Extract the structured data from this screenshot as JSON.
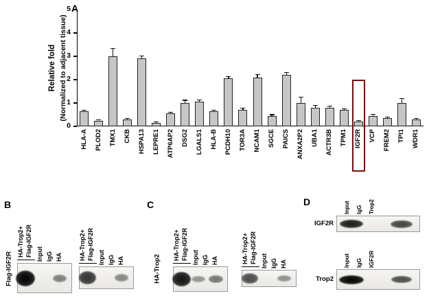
{
  "panels": {
    "a": {
      "label": "A"
    },
    "b": {
      "label": "B",
      "row_label": "Flag-IGF2R"
    },
    "c": {
      "label": "C",
      "row_label": "HA-Trop2"
    },
    "d": {
      "label": "D"
    }
  },
  "chart_data": {
    "type": "bar",
    "ylabel_line1": "Relative fold",
    "ylabel_line2": "(Normalized to adjacent tissue)",
    "ylim": [
      0,
      5
    ],
    "yticks": [
      0,
      1,
      2,
      3,
      4,
      5
    ],
    "categories": [
      "HLA-A",
      "PLOD2",
      "TMX1",
      "CKB",
      "HSPA13",
      "LEPRE1",
      "ATP6AP2",
      "DSG2",
      "LGALS1",
      "HLA-B",
      "PCDH10",
      "TOR3A",
      "NCAM1",
      "SGCE",
      "PAICS",
      "ANXA2P2",
      "UBA1",
      "ACTR3B",
      "TPM1",
      "IGF2R",
      "VCP",
      "FREM2",
      "TPI1",
      "WDR1"
    ],
    "values": [
      0.65,
      0.25,
      3.0,
      0.3,
      2.9,
      0.15,
      0.55,
      1.0,
      1.05,
      0.65,
      2.05,
      0.7,
      2.1,
      0.45,
      2.2,
      1.0,
      0.8,
      0.8,
      0.7,
      0.2,
      0.45,
      0.35,
      1.0,
      0.3
    ],
    "errors": [
      0.05,
      0.04,
      0.35,
      0.04,
      0.12,
      0.03,
      0.05,
      0.12,
      0.08,
      0.05,
      0.08,
      0.07,
      0.12,
      0.05,
      0.12,
      0.25,
      0.1,
      0.07,
      0.05,
      0.06,
      0.06,
      0.05,
      0.18,
      0.04
    ],
    "bar_color": "#c6c6c6",
    "bar_border": "#222222",
    "highlight_category": "IGF2R",
    "highlight_color": "#7a0c0c"
  },
  "blots": {
    "b1": {
      "group_line1": "HA-Trop2+",
      "group_line2": "Flag-IGF2R",
      "lanes": [
        "Input",
        "IgG",
        "HA"
      ],
      "bands": [
        1.0,
        0.0,
        0.25
      ]
    },
    "b2": {
      "group_line1": "HA-Trop2+",
      "group_line2": "Flag-IGF2R",
      "lanes": [
        "Input",
        "IgG",
        "HA"
      ],
      "bands": [
        0.7,
        0.0,
        0.2
      ]
    },
    "c1": {
      "group_line1": "HA-Trop2+",
      "group_line2": "Flag-IGF2R",
      "lanes": [
        "Input",
        "IgG",
        "HA"
      ],
      "bands": [
        0.9,
        0.12,
        0.3
      ]
    },
    "c2": {
      "group_line1": "HA-Trop2+",
      "group_line2": "Flag-IGF2R",
      "lanes": [
        "Input",
        "IgG",
        "HA"
      ],
      "bands": [
        0.55,
        0.0,
        0.15
      ]
    },
    "d1": {
      "row_label": "IGF2R",
      "lanes": [
        "Input",
        "IgG",
        "Trop2"
      ],
      "bands": [
        0.85,
        0.0,
        0.6
      ]
    },
    "d2": {
      "row_label": "Trop2",
      "lanes": [
        "Input",
        "IgG",
        "IGF2R"
      ],
      "bands": [
        1.0,
        0.0,
        0.55
      ]
    }
  }
}
